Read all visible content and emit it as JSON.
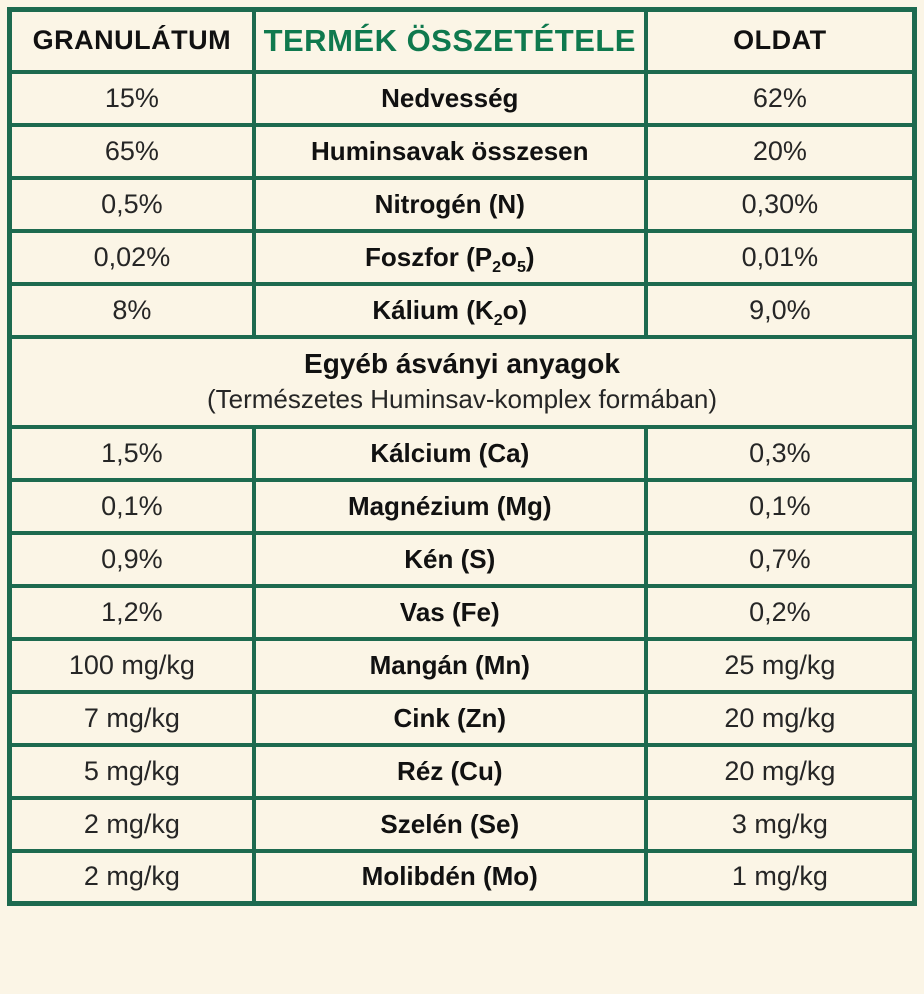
{
  "table": {
    "header": {
      "col_left": "GRANULÁTUM",
      "col_center": "TERMÉK ÖSSZETÉTELE",
      "col_right": "OLDAT"
    },
    "rows_top": [
      {
        "left": "15%",
        "label": "Nedvesség",
        "right": "62%"
      },
      {
        "left": "65%",
        "label": "Huminsavak összesen",
        "right": "20%"
      },
      {
        "left": "0,5%",
        "label": "Nitrogén (N)",
        "right": "0,30%"
      },
      {
        "left": "0,02%",
        "label_rich": [
          {
            "t": "Foszfor (P"
          },
          {
            "t": "2",
            "sub": true
          },
          {
            "t": "o"
          },
          {
            "t": "5",
            "sub": true
          },
          {
            "t": ")"
          }
        ],
        "right": "0,01%"
      },
      {
        "left": "8%",
        "label_rich": [
          {
            "t": "Kálium (K"
          },
          {
            "t": "2",
            "sub": true
          },
          {
            "t": "o)"
          }
        ],
        "right": "9,0%"
      }
    ],
    "section": {
      "title": "Egyéb ásványi anyagok",
      "subtitle": "(Természetes Huminsav-komplex formában)"
    },
    "rows_bottom": [
      {
        "left": "1,5%",
        "label": "Kálcium (Ca)",
        "right": "0,3%"
      },
      {
        "left": "0,1%",
        "label": "Magnézium (Mg)",
        "right": "0,1%"
      },
      {
        "left": "0,9%",
        "label": "Kén (S)",
        "right": "0,7%"
      },
      {
        "left": "1,2%",
        "label": "Vas (Fe)",
        "right": "0,2%"
      },
      {
        "left": "100 mg/kg",
        "label": "Mangán (Mn)",
        "right": "25 mg/kg"
      },
      {
        "left": "7 mg/kg",
        "label": "Cink (Zn)",
        "right": "20 mg/kg"
      },
      {
        "left": "5 mg/kg",
        "label": "Réz (Cu)",
        "right": "20 mg/kg"
      },
      {
        "left": "2 mg/kg",
        "label": "Szelén (Se)",
        "right": "3 mg/kg"
      },
      {
        "left": "2 mg/kg",
        "label": "Molibdén (Mo)",
        "right": "1 mg/kg"
      }
    ],
    "colors": {
      "border_green": "#1d6a4f",
      "heading_green": "#0f794e",
      "background_cream": "#fbf5e6",
      "text_dark": "#262626",
      "text_black": "#111111"
    }
  }
}
